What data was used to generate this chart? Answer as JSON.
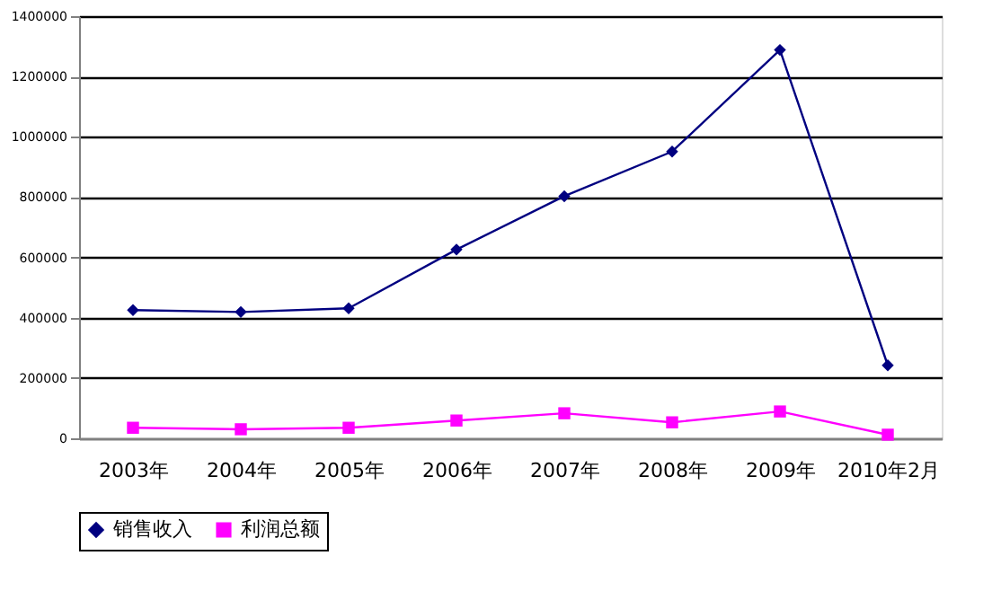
{
  "chart_data": {
    "type": "line",
    "categories": [
      "2003年",
      "2004年",
      "2005年",
      "2006年",
      "2007年",
      "2008年",
      "2009年",
      "2010年2月"
    ],
    "series": [
      {
        "name": "销售收入",
        "color": "#000080",
        "marker": "diamond",
        "values": [
          425000,
          419000,
          431000,
          626000,
          803000,
          951000,
          1288000,
          242000
        ]
      },
      {
        "name": "利润总额",
        "color": "#ff00ff",
        "marker": "square",
        "values": [
          35000,
          30000,
          35000,
          59000,
          83000,
          53000,
          89000,
          12000
        ]
      }
    ],
    "ylim": [
      0,
      1400000
    ],
    "yticks": [
      0,
      200000,
      400000,
      600000,
      800000,
      1000000,
      1200000,
      1400000
    ],
    "grid": "y",
    "legend": "bottom",
    "line_style": "solid"
  }
}
